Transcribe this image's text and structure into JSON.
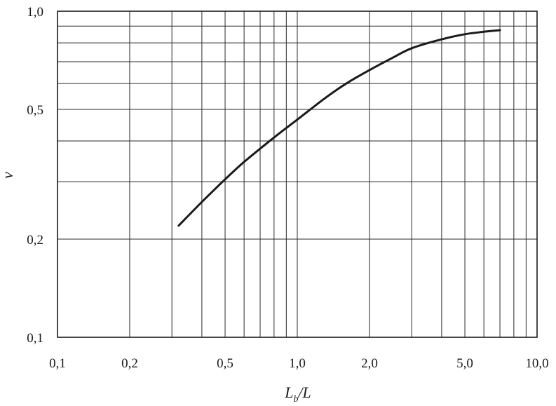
{
  "chart_data": {
    "type": "line",
    "x_scale": "log",
    "y_scale": "log",
    "xlim": [
      0.1,
      10.0
    ],
    "ylim": [
      0.1,
      1.0
    ],
    "grid": true,
    "xlabel": {
      "main": "L",
      "sub": "b",
      "rest": "/L"
    },
    "ylabel": "v",
    "x_ticks": [
      {
        "value": 0.1,
        "label": "0,1"
      },
      {
        "value": 0.2,
        "label": "0,2"
      },
      {
        "value": 0.5,
        "label": "0,5"
      },
      {
        "value": 1.0,
        "label": "1,0"
      },
      {
        "value": 2.0,
        "label": "2,0"
      },
      {
        "value": 5.0,
        "label": "5,0"
      },
      {
        "value": 10.0,
        "label": "10,0"
      }
    ],
    "y_ticks": [
      {
        "value": 0.1,
        "label": "0,1"
      },
      {
        "value": 0.2,
        "label": "0,2"
      },
      {
        "value": 0.5,
        "label": "0,5"
      },
      {
        "value": 1.0,
        "label": "1,0"
      }
    ],
    "x_gridlines": [
      0.2,
      0.3,
      0.4,
      0.5,
      0.6,
      0.7,
      0.8,
      0.9,
      1,
      2,
      3,
      4,
      5,
      6,
      7,
      8,
      9
    ],
    "y_gridlines": [
      0.2,
      0.3,
      0.4,
      0.5,
      0.6,
      0.7,
      0.8,
      0.9
    ],
    "series": [
      {
        "x": [
          0.32,
          0.4,
          0.5,
          0.6,
          0.8,
          1.0,
          1.3,
          1.6,
          2.0,
          2.5,
          3.0,
          4.0,
          5.0,
          6.0,
          7.0
        ],
        "y": [
          0.22,
          0.26,
          0.305,
          0.345,
          0.41,
          0.465,
          0.54,
          0.6,
          0.66,
          0.72,
          0.77,
          0.82,
          0.85,
          0.865,
          0.875
        ]
      }
    ]
  }
}
